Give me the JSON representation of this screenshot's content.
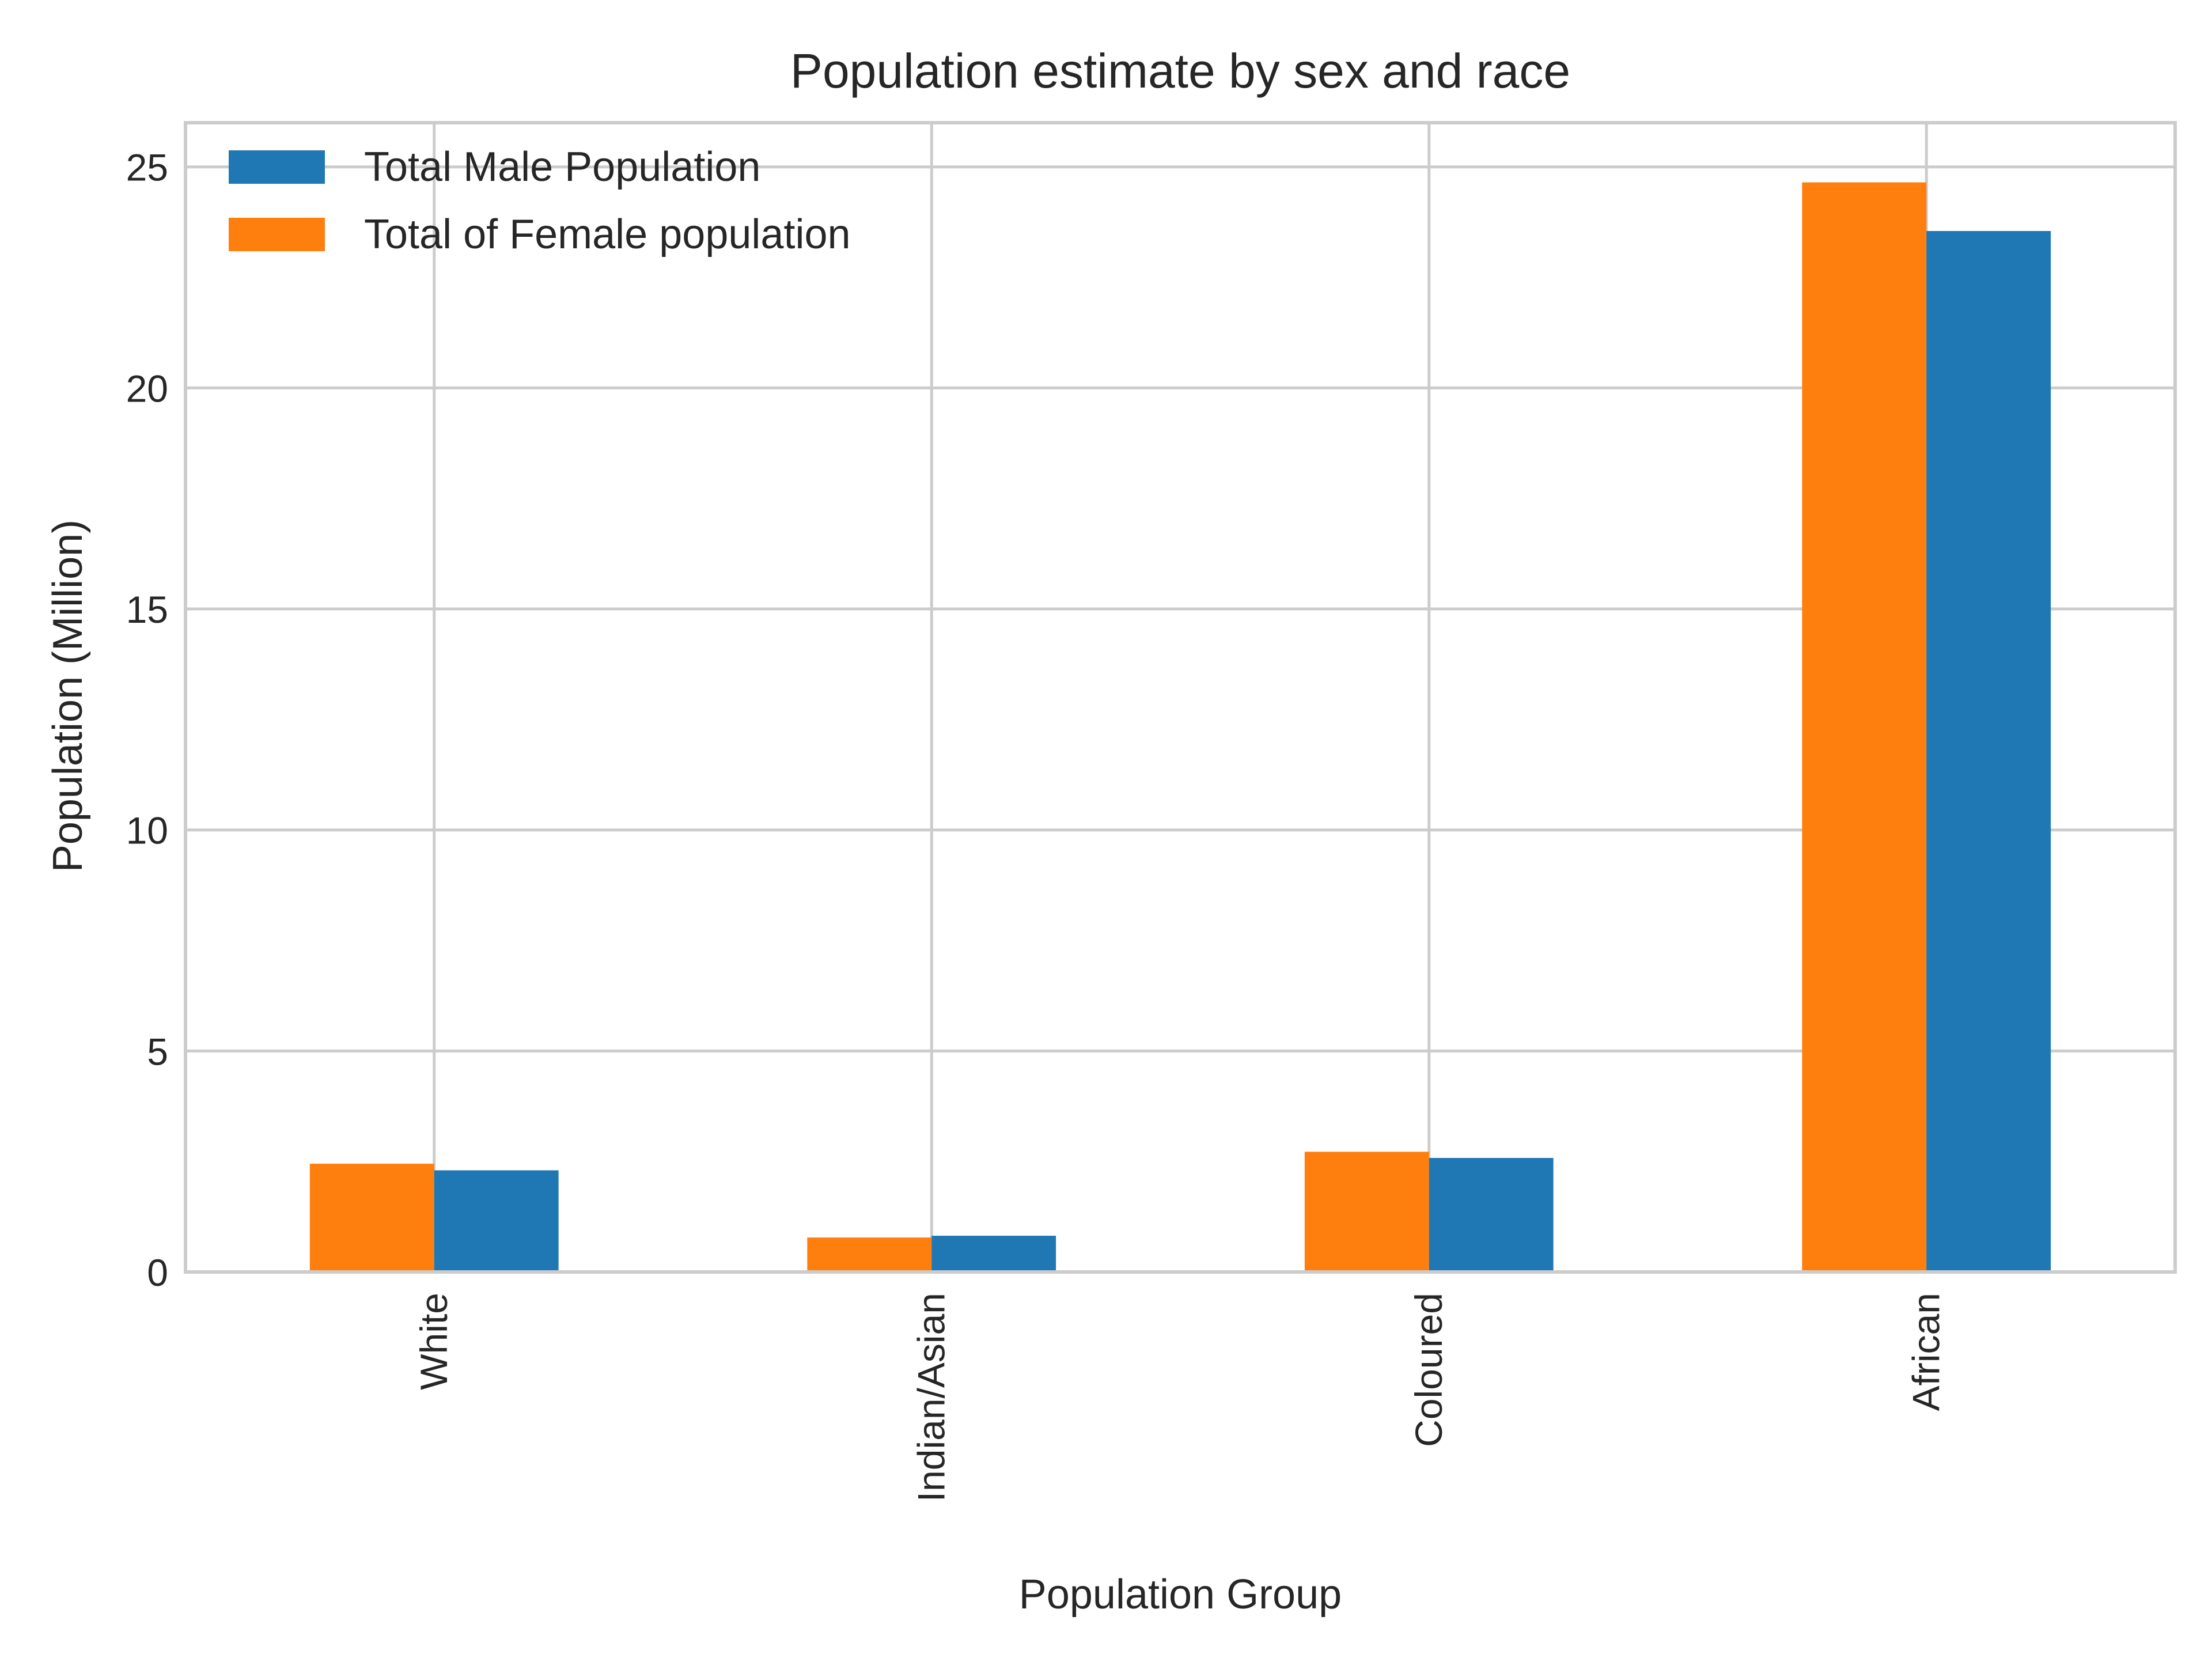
{
  "chart_data": {
    "type": "bar",
    "title": "Population estimate by sex and race",
    "xlabel": "Population Group",
    "ylabel": "Population (Million)",
    "categories": [
      "White",
      "Indian/Asian",
      "Coloured",
      "African"
    ],
    "series": [
      {
        "name": "Total of Female population",
        "color": "#ff7f0e",
        "values": [
          2.45,
          0.78,
          2.72,
          24.65
        ]
      },
      {
        "name": "Total Male Population",
        "color": "#1f77b4",
        "values": [
          2.3,
          0.82,
          2.58,
          23.55
        ]
      }
    ],
    "legend_order": [
      "Total Male Population",
      "Total of Female population"
    ],
    "ylim": [
      0,
      26
    ],
    "yticks": [
      0,
      5,
      10,
      15,
      20,
      25
    ],
    "grid": true,
    "legend_position": "top-left"
  }
}
